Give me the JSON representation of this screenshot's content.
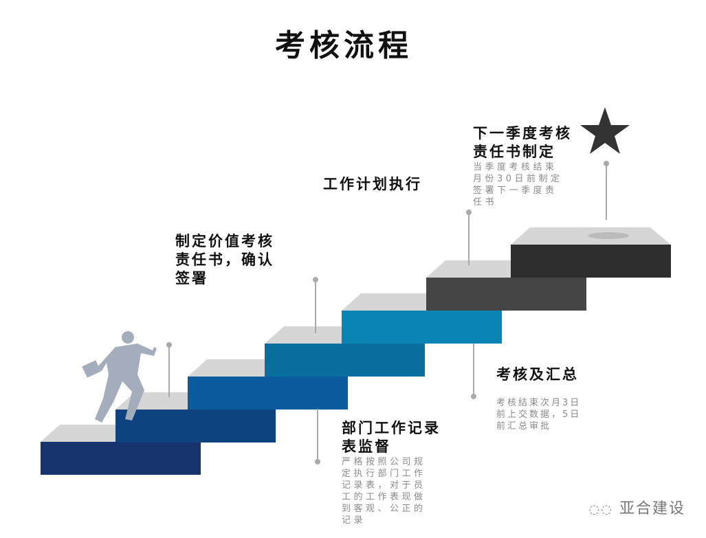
{
  "title": "考核流程",
  "steps": [
    {
      "heading": "制定价值考核责任书，确认签署",
      "heading_lines": [
        "制定价值考核",
        "责任书，确认",
        "签署"
      ]
    },
    {
      "heading": "部门工作记录表监督",
      "heading_lines": [
        "部门工作记录",
        "表监督"
      ],
      "desc_lines": [
        "严格按照公司规",
        "定执行部门工作",
        "记录表，对于员",
        "工的工作表现做",
        "到客观、公正的",
        "记录"
      ]
    },
    {
      "heading": "工作计划执行",
      "heading_lines": [
        "工作计划执行"
      ]
    },
    {
      "heading": "考核及汇总",
      "heading_lines": [
        "考核及汇总"
      ],
      "desc_lines": [
        "考核结束次月3日",
        "前上交数据，5日",
        "前汇总审批"
      ]
    },
    {
      "heading": "下一季度考核责任书制定",
      "heading_lines": [
        "下一季度考核",
        "责任书制定"
      ],
      "desc_lines": [
        "当季度考核结束",
        "月份30日前制定",
        "签署下一季度责",
        "任书"
      ]
    }
  ],
  "stair_colors": [
    "#17336e",
    "#0f437f",
    "#0b5c9e",
    "#0a6e9e",
    "#0a84b4",
    "#454545",
    "#2d2d2d"
  ],
  "stair_top_color": "#d6d6d6",
  "icons": {
    "goal": "star-icon",
    "figure": "running-businessman-icon",
    "watermark": "wechat-icon"
  },
  "watermark": "亚合建设"
}
